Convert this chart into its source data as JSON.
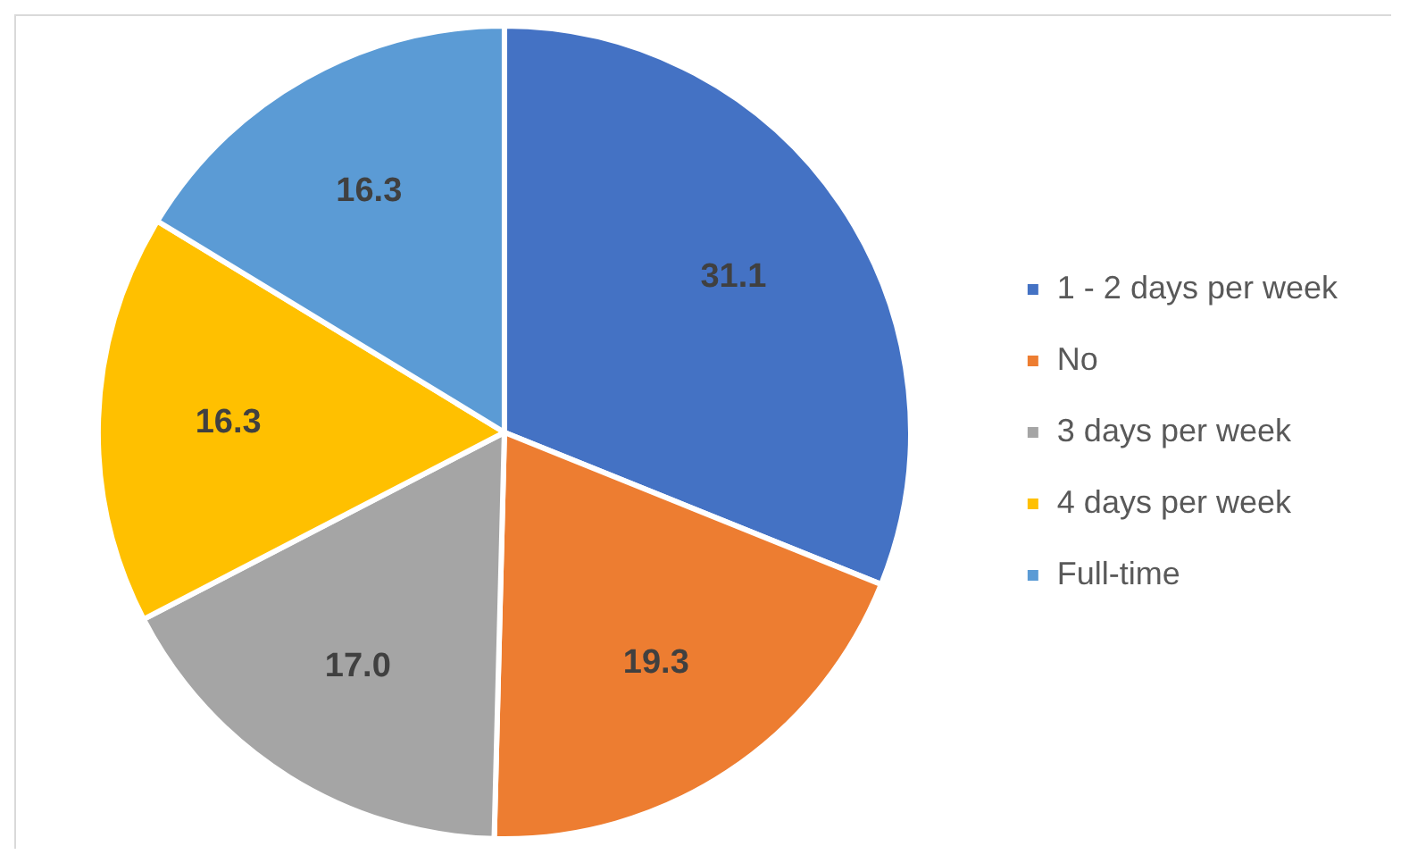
{
  "chart_data": {
    "type": "pie",
    "categories": [
      "1 - 2 days per week",
      "No",
      "3 days per week",
      "4 days per week",
      "Full-time"
    ],
    "values": [
      31.1,
      19.3,
      17.0,
      16.3,
      16.3
    ],
    "value_labels": [
      "31.1",
      "19.3",
      "17.0",
      "16.3",
      "16.3"
    ],
    "colors": [
      "#4472c4",
      "#ed7d31",
      "#a5a5a5",
      "#ffc000",
      "#5b9bd5"
    ],
    "legend": "right"
  }
}
